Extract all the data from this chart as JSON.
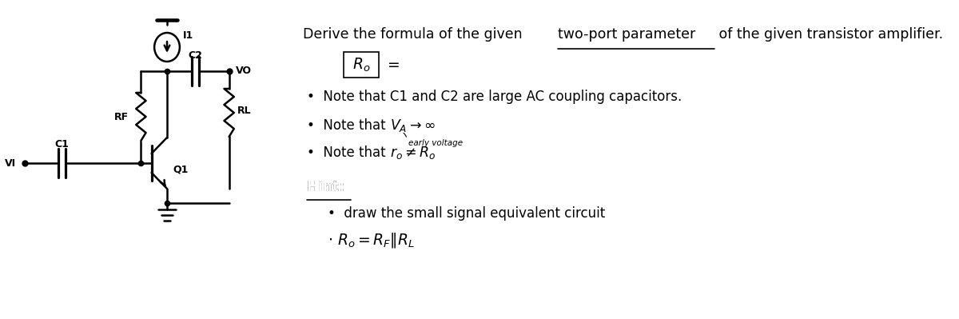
{
  "bg_color": "#ffffff",
  "title_text": "Derive the formula of the given two-port parameter of the given transistor amplifier.",
  "underline_text": "two-port parameter",
  "ro_box_text": "$R_o$",
  "equals_text": "=",
  "note1": "Note that C1 and C2 are large AC coupling capacitors.",
  "note2_prefix": "Note that ",
  "note2_math": "$V_A \\rightarrow \\infty$",
  "note2_sub": "early voltage",
  "note3_prefix": "Note that ",
  "note3_math": "$r_o \\neq R_o$",
  "hint_title": "Hint:",
  "hint1": "draw the small signal equivalent circuit",
  "hint2_math": "$R_o = R_F \\| R_L$",
  "font_size_main": 13,
  "font_size_notes": 12,
  "font_size_hint": 12,
  "text_color": "#000000"
}
